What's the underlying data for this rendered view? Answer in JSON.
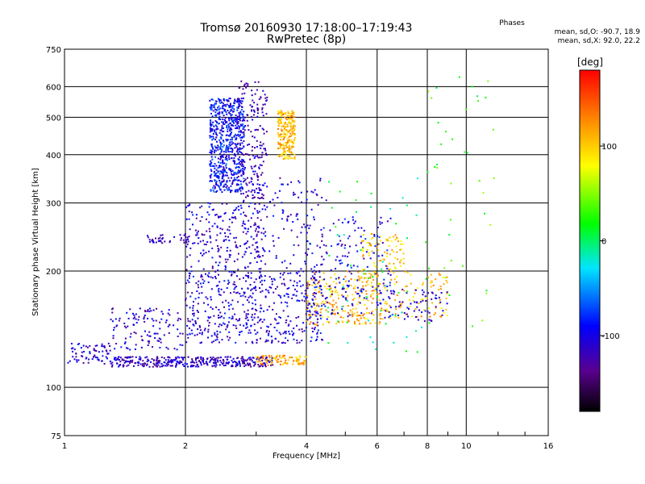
{
  "title": "Tromsø 20160930 17:18:00–17:19:43",
  "subtitle": "RwPretec (8p)",
  "stats": {
    "header": "Phases",
    "o_mode": "mean, sd,O: -90.7, 18.9",
    "x_mode": "mean, sd,X:  92.0, 22.2"
  },
  "colorbar": {
    "label": "[deg]",
    "ticks": [
      "100",
      "0",
      "-100"
    ],
    "tick_values": [
      100,
      0,
      -100
    ],
    "range": [
      -180,
      180
    ]
  },
  "chart_data": {
    "type": "scatter",
    "xlabel": "Frequency [MHz]",
    "ylabel": "Stationary phase Virtual Height [km]",
    "xscale": "log",
    "yscale": "log",
    "xlim": [
      1,
      16
    ],
    "ylim": [
      75,
      750
    ],
    "xticks": [
      1,
      2,
      4,
      6,
      8,
      10,
      16
    ],
    "xtick_labels": [
      "1",
      "2",
      "4",
      "6",
      "8",
      "10",
      "16"
    ],
    "yticks": [
      75,
      100,
      200,
      300,
      400,
      500,
      600,
      750
    ],
    "ytick_labels": [
      "75",
      "100",
      "200",
      "300",
      "400",
      "500",
      "600",
      "750"
    ],
    "grid": true,
    "color_by": "phase (deg)",
    "clusters": [
      {
        "xr": [
          1.02,
          1.3
        ],
        "y0": 115,
        "y1": 130,
        "phase": -110,
        "n": 70
      },
      {
        "xr": [
          1.3,
          3.3
        ],
        "y0": 113,
        "y1": 120,
        "phase": -115,
        "n": 380
      },
      {
        "xr": [
          1.3,
          2.0
        ],
        "y0": 125,
        "y1": 160,
        "phase": -110,
        "n": 120
      },
      {
        "xr": [
          2.0,
          4.4
        ],
        "y0": 130,
        "y1": 200,
        "phase": -105,
        "n": 520
      },
      {
        "xr": [
          1.6,
          2.1
        ],
        "y0": 235,
        "y1": 250,
        "phase": -115,
        "n": 40
      },
      {
        "xr": [
          2.0,
          3.1
        ],
        "y0": 200,
        "y1": 300,
        "phase": -108,
        "n": 220
      },
      {
        "xr": [
          2.3,
          2.8
        ],
        "y0": 320,
        "y1": 560,
        "phase": -90,
        "n": 650
      },
      {
        "xr": [
          2.7,
          3.2
        ],
        "y0": 300,
        "y1": 620,
        "phase": -118,
        "n": 200
      },
      {
        "xr": [
          3.4,
          3.75
        ],
        "y0": 390,
        "y1": 520,
        "phase": 110,
        "n": 220
      },
      {
        "xr": [
          3.0,
          4.0
        ],
        "y0": 114,
        "y1": 121,
        "phase": 115,
        "n": 90
      },
      {
        "xr": [
          4.0,
          6.2
        ],
        "y0": 145,
        "y1": 200,
        "phase": 110,
        "n": 220
      },
      {
        "xr": [
          4.0,
          6.5
        ],
        "y0": 150,
        "y1": 280,
        "phase": -100,
        "n": 200
      },
      {
        "xr": [
          5.5,
          9.0
        ],
        "y0": 150,
        "y1": 200,
        "phase": 105,
        "n": 120
      },
      {
        "xr": [
          6.5,
          9.0
        ],
        "y0": 148,
        "y1": 180,
        "phase": -110,
        "n": 60
      },
      {
        "xr": [
          5.5,
          7.0
        ],
        "y0": 200,
        "y1": 250,
        "phase": 100,
        "n": 80
      },
      {
        "xr": [
          3.0,
          4.5
        ],
        "y0": 200,
        "y1": 350,
        "phase": -110,
        "n": 120
      },
      {
        "xr": [
          8.0,
          12.0
        ],
        "y0": 140,
        "y1": 650,
        "phase": 30,
        "n": 40
      },
      {
        "xr": [
          4.5,
          8.0
        ],
        "y0": 120,
        "y1": 350,
        "phase": 0,
        "n": 60
      }
    ]
  }
}
